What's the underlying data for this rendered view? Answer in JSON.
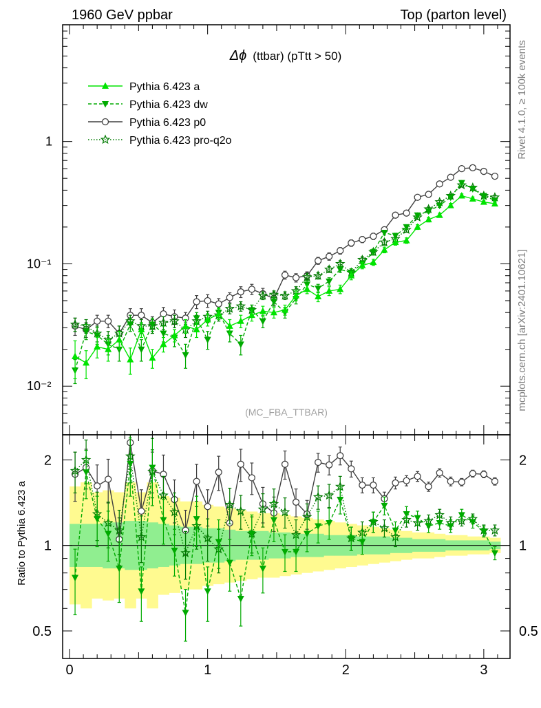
{
  "header": {
    "left": "1960 GeV ppbar",
    "right": "Top (parton level)"
  },
  "side": {
    "rivet": "Rivet 4.1.0, ≥ 100k events",
    "source": "mcplots.cern.ch [arXiv:2401.10621]"
  },
  "colors": {
    "a": "#00e400",
    "dw": "#00aa00",
    "p0": "#404040",
    "proq2o": "#007a00",
    "band_inner": "#90ee90",
    "band_outer": "#fffa90"
  },
  "chart_data": [
    {
      "type": "line",
      "title": "Δϕ (ttbar) (pTtt > 50)",
      "title_main": "Δϕ",
      "title_sub": "(ttbar) (pTtt > 50)",
      "watermark": "(MC_FBA_TTBAR)",
      "yscale": "log",
      "ylim": [
        0.004,
        9
      ],
      "xlim": [
        -0.05,
        3.19
      ],
      "ytick_labels": [
        "1",
        "10⁻¹",
        "10⁻²"
      ],
      "ytick_values": [
        1,
        0.1,
        0.01
      ],
      "legend_position": "top-left",
      "x": [
        0.04,
        0.12,
        0.2,
        0.28,
        0.36,
        0.44,
        0.52,
        0.6,
        0.68,
        0.76,
        0.84,
        0.92,
        1.0,
        1.08,
        1.16,
        1.24,
        1.32,
        1.4,
        1.48,
        1.56,
        1.64,
        1.72,
        1.8,
        1.88,
        1.96,
        2.04,
        2.12,
        2.2,
        2.28,
        2.36,
        2.44,
        2.52,
        2.6,
        2.68,
        2.76,
        2.84,
        2.92,
        3.0,
        3.08
      ],
      "series": [
        {
          "name": "Pythia 6.423 a",
          "key": "a",
          "marker": "triangle-up",
          "dash": "solid",
          "values": [
            0.0175,
            0.0155,
            0.021,
            0.02,
            0.024,
            0.0165,
            0.029,
            0.017,
            0.022,
            0.026,
            0.031,
            0.029,
            0.035,
            0.039,
            0.031,
            0.034,
            0.038,
            0.041,
            0.04,
            0.042,
            0.055,
            0.062,
            0.054,
            0.06,
            0.062,
            0.08,
            0.097,
            0.103,
            0.13,
            0.15,
            0.155,
            0.2,
            0.23,
            0.25,
            0.3,
            0.36,
            0.34,
            0.32,
            0.31
          ],
          "errors": [
            0.006,
            0.004,
            0.004,
            0.004,
            0.004,
            0.004,
            0.004,
            0.003,
            0.003,
            0.003,
            0.004,
            0.004,
            0.004,
            0.004,
            0.004,
            0.004,
            0.004,
            0.004,
            0.004,
            0.004,
            0.005,
            0.005,
            0.005,
            0.005,
            0.005,
            0.006,
            0.006,
            0.006,
            0.007,
            0.008,
            0.008,
            0.009,
            0.01,
            0.01,
            0.012,
            0.013,
            0.012,
            0.012,
            0.012
          ]
        },
        {
          "name": "Pythia 6.423 dw",
          "key": "dw",
          "marker": "triangle-down",
          "dash": "dashed",
          "values": [
            0.0135,
            0.028,
            0.026,
            0.022,
            0.02,
            0.032,
            0.02,
            0.032,
            0.027,
            0.025,
            0.018,
            0.036,
            0.024,
            0.04,
            0.027,
            0.022,
            0.042,
            0.034,
            0.049,
            0.04,
            0.052,
            0.068,
            0.063,
            0.072,
            0.09,
            0.085,
            0.1,
            0.125,
            0.18,
            0.17,
            0.2,
            0.25,
            0.27,
            0.3,
            0.35,
            0.46,
            0.41,
            0.36,
            0.33
          ],
          "errors": [
            0.003,
            0.004,
            0.004,
            0.004,
            0.004,
            0.004,
            0.004,
            0.004,
            0.004,
            0.004,
            0.004,
            0.004,
            0.004,
            0.004,
            0.004,
            0.004,
            0.004,
            0.004,
            0.004,
            0.004,
            0.005,
            0.005,
            0.005,
            0.005,
            0.005,
            0.006,
            0.006,
            0.007,
            0.008,
            0.008,
            0.009,
            0.01,
            0.01,
            0.011,
            0.012,
            0.014,
            0.013,
            0.012,
            0.012
          ]
        },
        {
          "name": "Pythia 6.423 p0",
          "key": "p0",
          "marker": "circle-open",
          "dash": "solid",
          "values": [
            0.031,
            0.029,
            0.034,
            0.034,
            0.027,
            0.038,
            0.038,
            0.033,
            0.039,
            0.037,
            0.036,
            0.049,
            0.05,
            0.047,
            0.053,
            0.059,
            0.062,
            0.057,
            0.052,
            0.081,
            0.077,
            0.08,
            0.106,
            0.115,
            0.128,
            0.148,
            0.158,
            0.168,
            0.19,
            0.25,
            0.26,
            0.35,
            0.37,
            0.45,
            0.51,
            0.6,
            0.61,
            0.57,
            0.52
          ],
          "errors": [
            0.005,
            0.004,
            0.004,
            0.004,
            0.004,
            0.005,
            0.005,
            0.004,
            0.005,
            0.005,
            0.004,
            0.006,
            0.006,
            0.005,
            0.005,
            0.006,
            0.006,
            0.006,
            0.006,
            0.006,
            0.006,
            0.006,
            0.007,
            0.008,
            0.008,
            0.009,
            0.009,
            0.01,
            0.01,
            0.012,
            0.012,
            0.013,
            0.013,
            0.014,
            0.015,
            0.016,
            0.016,
            0.015,
            0.014
          ]
        },
        {
          "name": "Pythia 6.423 pro-q2o",
          "key": "proq2o",
          "marker": "star-open",
          "dash": "dotted",
          "values": [
            0.032,
            0.031,
            0.027,
            0.024,
            0.027,
            0.034,
            0.031,
            0.031,
            0.033,
            0.034,
            0.029,
            0.034,
            0.037,
            0.038,
            0.043,
            0.045,
            0.042,
            0.055,
            0.056,
            0.055,
            0.06,
            0.078,
            0.08,
            0.09,
            0.1,
            0.085,
            0.108,
            0.125,
            0.15,
            0.16,
            0.19,
            0.24,
            0.28,
            0.32,
            0.36,
            0.44,
            0.42,
            0.36,
            0.35
          ],
          "errors": [
            0.004,
            0.004,
            0.004,
            0.004,
            0.004,
            0.004,
            0.004,
            0.004,
            0.004,
            0.004,
            0.004,
            0.004,
            0.004,
            0.004,
            0.004,
            0.004,
            0.004,
            0.004,
            0.004,
            0.004,
            0.005,
            0.005,
            0.005,
            0.005,
            0.006,
            0.006,
            0.006,
            0.007,
            0.008,
            0.008,
            0.009,
            0.01,
            0.011,
            0.011,
            0.012,
            0.014,
            0.013,
            0.012,
            0.012
          ]
        }
      ]
    },
    {
      "type": "line",
      "ylabel": "Ratio to Pythia 6.423 a",
      "yscale": "log",
      "ylim": [
        0.4,
        2.45
      ],
      "xlim": [
        -0.05,
        3.19
      ],
      "xtick_labels": [
        "0",
        "1",
        "2",
        "3"
      ],
      "xtick_values": [
        0,
        1,
        2,
        3
      ],
      "ytick_labels": [
        "2",
        "1",
        "0.5"
      ],
      "ytick_values": [
        2,
        1,
        0.5
      ],
      "reference": 1,
      "band_inner": [
        0.84,
        0.84,
        0.84,
        0.83,
        0.83,
        0.82,
        0.82,
        0.83,
        0.84,
        0.85,
        0.86,
        0.86,
        0.87,
        0.87,
        0.88,
        0.89,
        0.89,
        0.89,
        0.9,
        0.9,
        0.91,
        0.91,
        0.91,
        0.92,
        0.92,
        0.92,
        0.93,
        0.93,
        0.93,
        0.94,
        0.94,
        0.95,
        0.95,
        0.95,
        0.96,
        0.96,
        0.96,
        0.96,
        0.97
      ],
      "band_outer": [
        0.62,
        0.6,
        0.65,
        0.64,
        0.65,
        0.6,
        0.65,
        0.6,
        0.67,
        0.68,
        0.7,
        0.7,
        0.72,
        0.73,
        0.74,
        0.75,
        0.76,
        0.77,
        0.77,
        0.78,
        0.79,
        0.8,
        0.81,
        0.82,
        0.83,
        0.84,
        0.85,
        0.86,
        0.87,
        0.88,
        0.89,
        0.9,
        0.9,
        0.91,
        0.92,
        0.92,
        0.93,
        0.93,
        0.94
      ],
      "series": [
        {
          "name": "Pythia 6.423 dw",
          "key": "dw",
          "values": [
            0.77,
            1.81,
            1.24,
            1.1,
            0.83,
            1.94,
            0.69,
            1.88,
            1.23,
            0.96,
            0.58,
            1.24,
            0.69,
            1.03,
            0.87,
            0.65,
            1.1,
            0.83,
            1.23,
            0.95,
            0.95,
            1.1,
            1.17,
            1.2,
            1.45,
            1.06,
            1.03,
            1.21,
            1.38,
            1.13,
            1.29,
            1.25,
            1.17,
            1.2,
            1.17,
            1.28,
            1.21,
            1.12,
            0.94
          ],
          "errors": [
            0.2,
            0.35,
            0.25,
            0.22,
            0.2,
            0.45,
            0.15,
            0.5,
            0.22,
            0.18,
            0.12,
            0.25,
            0.15,
            0.2,
            0.18,
            0.13,
            0.18,
            0.15,
            0.2,
            0.14,
            0.14,
            0.15,
            0.15,
            0.15,
            0.16,
            0.1,
            0.1,
            0.1,
            0.1,
            0.08,
            0.08,
            0.07,
            0.06,
            0.06,
            0.06,
            0.06,
            0.06,
            0.05,
            0.05
          ]
        },
        {
          "name": "Pythia 6.423 p0",
          "key": "p0",
          "values": [
            1.78,
            1.88,
            1.62,
            1.71,
            1.05,
            2.3,
            1.32,
            1.83,
            1.78,
            1.45,
            1.13,
            1.68,
            1.37,
            1.81,
            1.2,
            1.93,
            1.73,
            1.4,
            1.3,
            1.93,
            1.42,
            1.29,
            1.96,
            1.92,
            2.07,
            1.86,
            1.63,
            1.63,
            1.46,
            1.66,
            1.69,
            1.75,
            1.61,
            1.8,
            1.68,
            1.67,
            1.79,
            1.78,
            1.68
          ],
          "errors": [
            0.35,
            0.3,
            0.3,
            0.3,
            0.2,
            0.45,
            0.25,
            0.3,
            0.3,
            0.25,
            0.2,
            0.25,
            0.2,
            0.25,
            0.2,
            0.25,
            0.22,
            0.2,
            0.18,
            0.22,
            0.16,
            0.15,
            0.15,
            0.15,
            0.15,
            0.12,
            0.1,
            0.1,
            0.08,
            0.08,
            0.07,
            0.07,
            0.06,
            0.06,
            0.06,
            0.05,
            0.05,
            0.05,
            0.05
          ]
        },
        {
          "name": "Pythia 6.423 pro-q2o",
          "key": "proq2o",
          "values": [
            1.83,
            2.0,
            1.29,
            1.2,
            1.13,
            2.06,
            1.07,
            1.82,
            1.5,
            1.31,
            0.94,
            1.17,
            1.06,
            0.97,
            1.39,
            1.32,
            1.1,
            1.34,
            1.4,
            1.31,
            1.09,
            1.26,
            1.48,
            1.5,
            1.61,
            1.06,
            1.11,
            1.21,
            1.15,
            1.07,
            1.23,
            1.2,
            1.22,
            1.28,
            1.2,
            1.22,
            1.24,
            1.13,
            1.13
          ],
          "errors": [
            0.3,
            0.35,
            0.25,
            0.22,
            0.2,
            0.4,
            0.2,
            0.35,
            0.25,
            0.22,
            0.18,
            0.2,
            0.18,
            0.17,
            0.2,
            0.18,
            0.16,
            0.18,
            0.18,
            0.16,
            0.14,
            0.14,
            0.14,
            0.14,
            0.14,
            0.1,
            0.1,
            0.1,
            0.08,
            0.08,
            0.07,
            0.07,
            0.06,
            0.06,
            0.06,
            0.05,
            0.05,
            0.05,
            0.05
          ]
        }
      ]
    }
  ]
}
